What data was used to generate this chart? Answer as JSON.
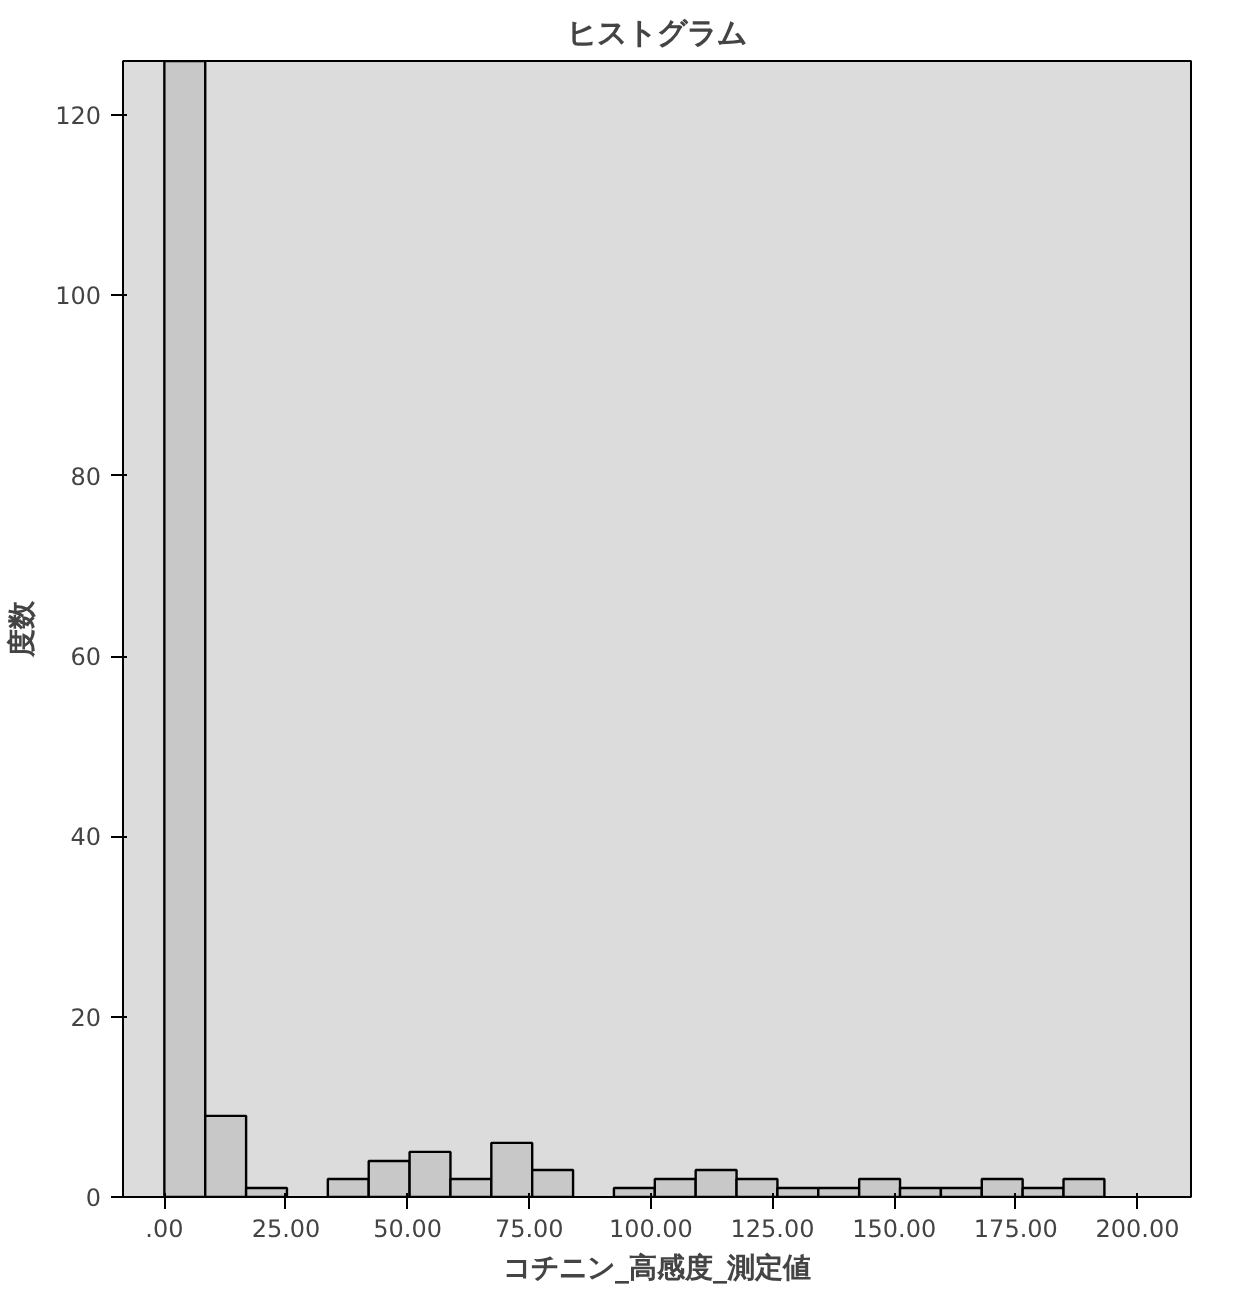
{
  "chart_data": {
    "type": "histogram",
    "title": "ヒストグラム",
    "xlabel": "コチニン_高感度_測定値",
    "ylabel": "度数",
    "bins": [
      0,
      8.4,
      16.8,
      25.2,
      33.6,
      42,
      50.4,
      58.8,
      67.2,
      75.6,
      84,
      92.4,
      100.8,
      109.2,
      117.6,
      126,
      134.4,
      142.8,
      151.2,
      159.6,
      168,
      176.4,
      184.8,
      193.2
    ],
    "values": [
      126,
      9,
      1,
      0,
      2,
      4,
      5,
      2,
      6,
      3,
      0,
      1,
      2,
      3,
      2,
      1,
      1,
      2,
      1,
      1,
      2,
      1,
      2
    ],
    "color": "#c8c8c8",
    "xlim": [
      -8.5,
      211
    ],
    "ylim": [
      0,
      126
    ],
    "xticks": [
      {
        "value": 0,
        "label": ".00"
      },
      {
        "value": 25,
        "label": "25.00"
      },
      {
        "value": 50,
        "label": "50.00"
      },
      {
        "value": 75,
        "label": "75.00"
      },
      {
        "value": 100,
        "label": "100.00"
      },
      {
        "value": 125,
        "label": "125.00"
      },
      {
        "value": 150,
        "label": "150.00"
      },
      {
        "value": 175,
        "label": "175.00"
      },
      {
        "value": 200,
        "label": "200.00"
      }
    ],
    "yticks": [
      0,
      20,
      40,
      60,
      80,
      100,
      120
    ],
    "grid": false
  }
}
